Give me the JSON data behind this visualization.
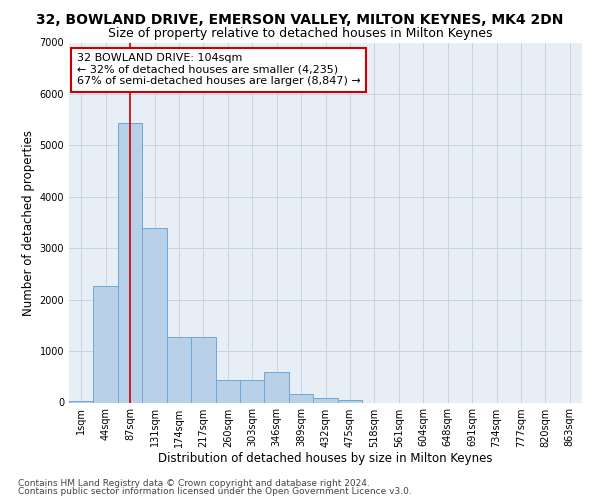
{
  "title": "32, BOWLAND DRIVE, EMERSON VALLEY, MILTON KEYNES, MK4 2DN",
  "subtitle": "Size of property relative to detached houses in Milton Keynes",
  "xlabel": "Distribution of detached houses by size in Milton Keynes",
  "ylabel": "Number of detached properties",
  "footnote1": "Contains HM Land Registry data © Crown copyright and database right 2024.",
  "footnote2": "Contains public sector information licensed under the Open Government Licence v3.0.",
  "categories": [
    "1sqm",
    "44sqm",
    "87sqm",
    "131sqm",
    "174sqm",
    "217sqm",
    "260sqm",
    "303sqm",
    "346sqm",
    "389sqm",
    "432sqm",
    "475sqm",
    "518sqm",
    "561sqm",
    "604sqm",
    "648sqm",
    "691sqm",
    "734sqm",
    "777sqm",
    "820sqm",
    "863sqm"
  ],
  "values": [
    30,
    2270,
    5430,
    3400,
    1270,
    1270,
    430,
    430,
    600,
    165,
    95,
    50,
    0,
    0,
    0,
    0,
    0,
    0,
    0,
    0,
    0
  ],
  "bar_color": "#b8d0e8",
  "bar_edge_color": "#6aaad4",
  "grid_color": "#c8d4e4",
  "bg_color": "#e8eef6",
  "annotation_box_color": "#cc0000",
  "vline_color": "#cc0000",
  "vline_x": 2,
  "annotation_title": "32 BOWLAND DRIVE: 104sqm",
  "annotation_line1": "← 32% of detached houses are smaller (4,235)",
  "annotation_line2": "67% of semi-detached houses are larger (8,847) →",
  "ylim": [
    0,
    7000
  ],
  "yticks": [
    0,
    1000,
    2000,
    3000,
    4000,
    5000,
    6000,
    7000
  ],
  "title_fontsize": 10,
  "subtitle_fontsize": 9,
  "axis_label_fontsize": 8.5,
  "tick_fontsize": 7,
  "annotation_fontsize": 8,
  "footnote_fontsize": 6.5
}
